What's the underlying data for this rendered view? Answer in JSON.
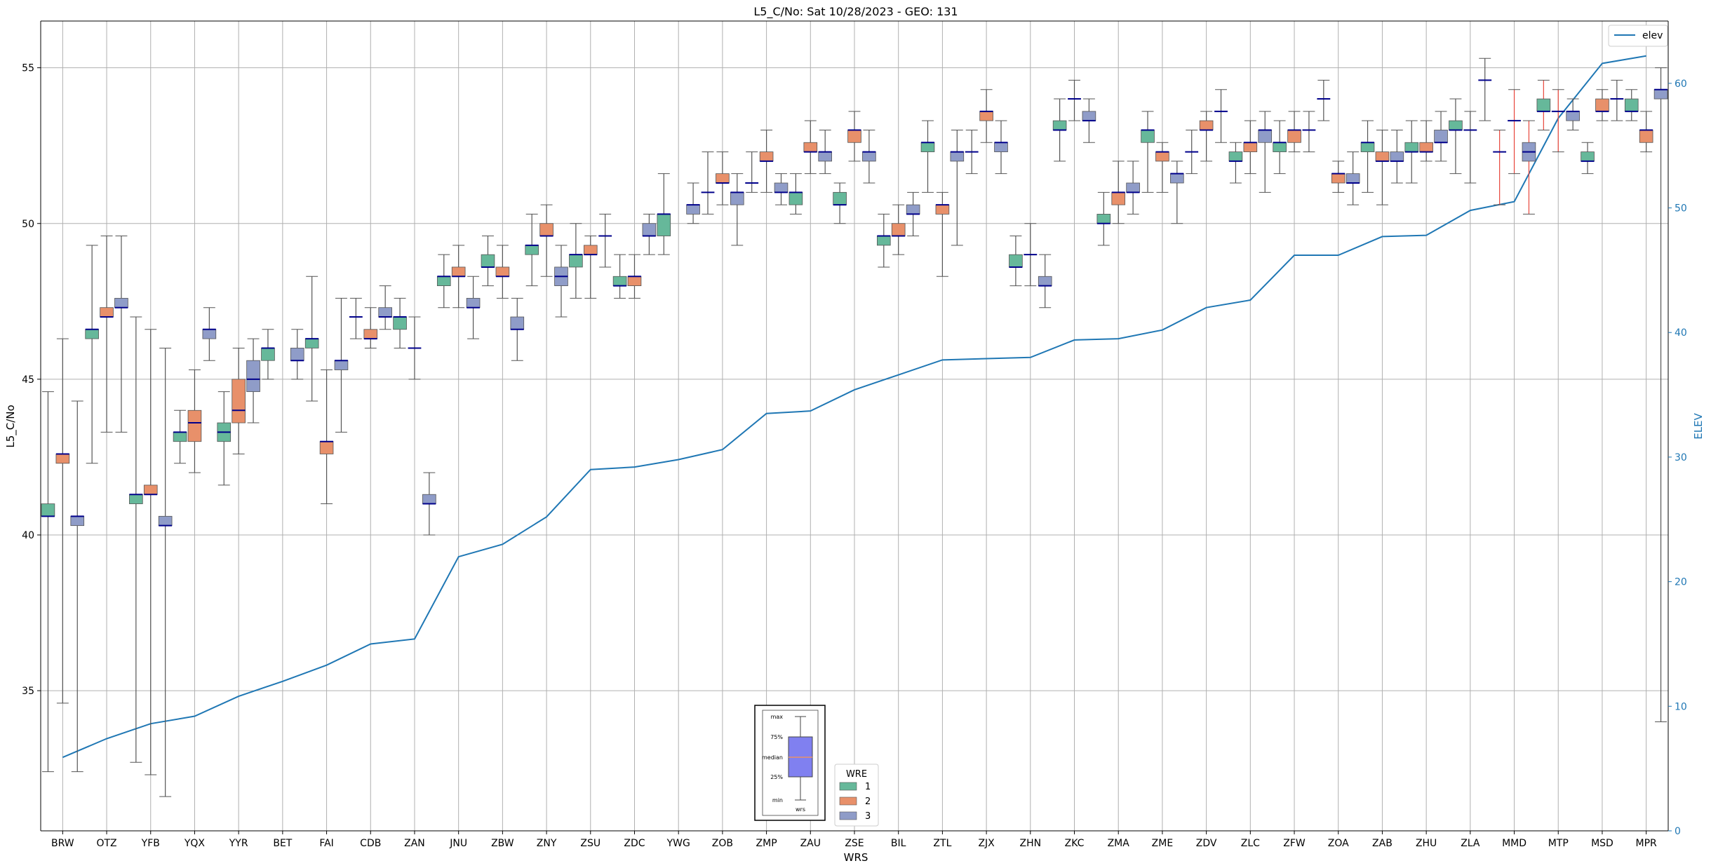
{
  "chart_data": {
    "type": "box",
    "title": "L5_C/No: Sat 10/28/2023 - GEO: 131",
    "xlabel": "WRS",
    "ylabel": "L5_C/No",
    "y2label": "ELEV",
    "ylim": [
      30.5,
      56.5
    ],
    "y2lim": [
      0,
      65
    ],
    "yticks": [
      35,
      40,
      45,
      50,
      55
    ],
    "y2ticks": [
      0,
      10,
      20,
      30,
      40,
      50,
      60
    ],
    "grid": true,
    "colors": {
      "wre1": "#66b89a",
      "wre2": "#e8906a",
      "wre3": "#8f9cc8",
      "median": "#00008b",
      "whisker": "#555555",
      "elev_line": "#1f77b4",
      "elev_axis": "#1f77b4",
      "outlier_whisker": "#e8463c"
    },
    "categories": [
      "BRW",
      "OTZ",
      "YFB",
      "YQX",
      "YYR",
      "BET",
      "FAI",
      "CDB",
      "ZAN",
      "JNU",
      "ZBW",
      "ZNY",
      "ZSU",
      "ZDC",
      "YWG",
      "ZOB",
      "ZMP",
      "ZAU",
      "ZSE",
      "BIL",
      "ZTL",
      "ZJX",
      "ZHN",
      "ZKC",
      "ZMA",
      "ZME",
      "ZDV",
      "ZLC",
      "ZFW",
      "ZOA",
      "ZAB",
      "ZHU",
      "ZLA",
      "MMD",
      "MTP",
      "MSD",
      "MPR"
    ],
    "elev": [
      5.9,
      7.4,
      8.6,
      9.2,
      10.8,
      12.0,
      13.3,
      15.0,
      15.4,
      22.0,
      23.0,
      25.2,
      29.0,
      29.2,
      29.8,
      30.6,
      33.5,
      33.7,
      35.4,
      36.6,
      37.8,
      37.9,
      38.0,
      39.4,
      39.5,
      40.2,
      42.0,
      42.6,
      46.2,
      46.2,
      47.7,
      47.8,
      49.8,
      50.5,
      57.2,
      61.6,
      62.2
    ],
    "legend_main": {
      "title": "elev",
      "entries": [
        "elev"
      ],
      "placement": "upper right"
    },
    "legend_wre": {
      "title": "WRE",
      "entries": [
        "1",
        "2",
        "3"
      ],
      "placement": "lower center"
    },
    "boxplot_key": {
      "labels": [
        "max",
        "75%",
        "median",
        "25%",
        "min"
      ],
      "xlabel": "wrs"
    },
    "boxes": [
      {
        "cat": "BRW",
        "wre": 1,
        "min": 32.4,
        "q1": 40.6,
        "med": 40.6,
        "q3": 41.0,
        "max": 44.6
      },
      {
        "cat": "BRW",
        "wre": 2,
        "min": 34.6,
        "q1": 42.3,
        "med": 42.6,
        "q3": 42.6,
        "max": 46.3
      },
      {
        "cat": "BRW",
        "wre": 3,
        "min": 32.4,
        "q1": 40.3,
        "med": 40.6,
        "q3": 40.6,
        "max": 44.3
      },
      {
        "cat": "OTZ",
        "wre": 1,
        "min": 42.3,
        "q1": 46.3,
        "med": 46.6,
        "q3": 46.6,
        "max": 49.3
      },
      {
        "cat": "OTZ",
        "wre": 2,
        "min": 43.3,
        "q1": 47.0,
        "med": 47.0,
        "q3": 47.3,
        "max": 49.6
      },
      {
        "cat": "OTZ",
        "wre": 3,
        "min": 43.3,
        "q1": 47.3,
        "med": 47.3,
        "q3": 47.6,
        "max": 49.6
      },
      {
        "cat": "YFB",
        "wre": 1,
        "min": 32.7,
        "q1": 41.0,
        "med": 41.3,
        "q3": 41.3,
        "max": 47.0
      },
      {
        "cat": "YFB",
        "wre": 2,
        "min": 32.3,
        "q1": 41.3,
        "med": 41.3,
        "q3": 41.6,
        "max": 46.6
      },
      {
        "cat": "YFB",
        "wre": 3,
        "min": 31.6,
        "q1": 40.3,
        "med": 40.3,
        "q3": 40.6,
        "max": 46.0
      },
      {
        "cat": "YQX",
        "wre": 1,
        "min": 42.3,
        "q1": 43.0,
        "med": 43.3,
        "q3": 43.3,
        "max": 44.0
      },
      {
        "cat": "YQX",
        "wre": 2,
        "min": 42.0,
        "q1": 43.0,
        "med": 43.6,
        "q3": 44.0,
        "max": 45.3
      },
      {
        "cat": "YQX",
        "wre": 3,
        "min": 45.6,
        "q1": 46.3,
        "med": 46.6,
        "q3": 46.6,
        "max": 47.3
      },
      {
        "cat": "YYR",
        "wre": 1,
        "min": 41.6,
        "q1": 43.0,
        "med": 43.3,
        "q3": 43.6,
        "max": 44.6
      },
      {
        "cat": "YYR",
        "wre": 2,
        "min": 42.6,
        "q1": 43.6,
        "med": 44.0,
        "q3": 45.0,
        "max": 46.0
      },
      {
        "cat": "YYR",
        "wre": 3,
        "min": 43.6,
        "q1": 44.6,
        "med": 45.0,
        "q3": 45.6,
        "max": 46.3
      },
      {
        "cat": "BET",
        "wre": 1,
        "min": 45.0,
        "q1": 45.6,
        "med": 46.0,
        "q3": 46.0,
        "max": 46.6
      },
      {
        "cat": "BET",
        "wre": 3,
        "min": 45.0,
        "q1": 45.6,
        "med": 45.6,
        "q3": 46.0,
        "max": 46.6
      },
      {
        "cat": "FAI",
        "wre": 1,
        "min": 44.3,
        "q1": 46.0,
        "med": 46.3,
        "q3": 46.3,
        "max": 48.3
      },
      {
        "cat": "FAI",
        "wre": 2,
        "min": 41.0,
        "q1": 42.6,
        "med": 43.0,
        "q3": 43.0,
        "max": 45.3
      },
      {
        "cat": "FAI",
        "wre": 3,
        "min": 43.3,
        "q1": 45.3,
        "med": 45.6,
        "q3": 45.6,
        "max": 47.6
      },
      {
        "cat": "CDB",
        "wre": 1,
        "min": 46.3,
        "q1": 47.0,
        "med": 47.0,
        "q3": 47.0,
        "max": 47.6
      },
      {
        "cat": "CDB",
        "wre": 2,
        "min": 46.0,
        "q1": 46.3,
        "med": 46.3,
        "q3": 46.6,
        "max": 47.3
      },
      {
        "cat": "CDB",
        "wre": 3,
        "min": 46.6,
        "q1": 47.0,
        "med": 47.0,
        "q3": 47.3,
        "max": 48.0
      },
      {
        "cat": "ZAN",
        "wre": 1,
        "min": 46.0,
        "q1": 46.6,
        "med": 47.0,
        "q3": 47.0,
        "max": 47.6
      },
      {
        "cat": "ZAN",
        "wre": 2,
        "min": 45.0,
        "q1": 46.0,
        "med": 46.0,
        "q3": 46.0,
        "max": 47.0
      },
      {
        "cat": "ZAN",
        "wre": 3,
        "min": 40.0,
        "q1": 41.0,
        "med": 41.0,
        "q3": 41.3,
        "max": 42.0
      },
      {
        "cat": "JNU",
        "wre": 1,
        "min": 47.3,
        "q1": 48.0,
        "med": 48.3,
        "q3": 48.3,
        "max": 49.0
      },
      {
        "cat": "JNU",
        "wre": 2,
        "min": 47.3,
        "q1": 48.3,
        "med": 48.3,
        "q3": 48.6,
        "max": 49.3
      },
      {
        "cat": "JNU",
        "wre": 3,
        "min": 46.3,
        "q1": 47.3,
        "med": 47.3,
        "q3": 47.6,
        "max": 48.3
      },
      {
        "cat": "ZBW",
        "wre": 1,
        "min": 48.0,
        "q1": 48.6,
        "med": 48.6,
        "q3": 49.0,
        "max": 49.6
      },
      {
        "cat": "ZBW",
        "wre": 2,
        "min": 47.6,
        "q1": 48.3,
        "med": 48.3,
        "q3": 48.6,
        "max": 49.3
      },
      {
        "cat": "ZBW",
        "wre": 3,
        "min": 45.6,
        "q1": 46.6,
        "med": 46.6,
        "q3": 47.0,
        "max": 47.6
      },
      {
        "cat": "ZNY",
        "wre": 1,
        "min": 48.0,
        "q1": 49.0,
        "med": 49.3,
        "q3": 49.3,
        "max": 50.3
      },
      {
        "cat": "ZNY",
        "wre": 2,
        "min": 48.3,
        "q1": 49.6,
        "med": 49.6,
        "q3": 50.0,
        "max": 50.6
      },
      {
        "cat": "ZNY",
        "wre": 3,
        "min": 47.0,
        "q1": 48.0,
        "med": 48.3,
        "q3": 48.6,
        "max": 49.3
      },
      {
        "cat": "ZSU",
        "wre": 1,
        "min": 47.6,
        "q1": 48.6,
        "med": 49.0,
        "q3": 49.0,
        "max": 50.0
      },
      {
        "cat": "ZSU",
        "wre": 2,
        "min": 47.6,
        "q1": 49.0,
        "med": 49.0,
        "q3": 49.3,
        "max": 49.6
      },
      {
        "cat": "ZSU",
        "wre": 3,
        "min": 48.6,
        "q1": 49.6,
        "med": 49.6,
        "q3": 49.6,
        "max": 50.3
      },
      {
        "cat": "ZDC",
        "wre": 1,
        "min": 47.6,
        "q1": 48.0,
        "med": 48.0,
        "q3": 48.3,
        "max": 49.0
      },
      {
        "cat": "ZDC",
        "wre": 2,
        "min": 47.6,
        "q1": 48.0,
        "med": 48.3,
        "q3": 48.3,
        "max": 49.0
      },
      {
        "cat": "ZDC",
        "wre": 3,
        "min": 49.0,
        "q1": 49.6,
        "med": 49.6,
        "q3": 50.0,
        "max": 50.3
      },
      {
        "cat": "YWG",
        "wre": 1,
        "min": 49.0,
        "q1": 49.6,
        "med": 50.3,
        "q3": 50.3,
        "max": 51.6
      },
      {
        "cat": "YWG",
        "wre": 3,
        "min": 50.0,
        "q1": 50.3,
        "med": 50.6,
        "q3": 50.6,
        "max": 51.3
      },
      {
        "cat": "ZOB",
        "wre": 1,
        "min": 50.3,
        "q1": 51.0,
        "med": 51.0,
        "q3": 51.0,
        "max": 52.3
      },
      {
        "cat": "ZOB",
        "wre": 2,
        "min": 50.6,
        "q1": 51.3,
        "med": 51.3,
        "q3": 51.6,
        "max": 52.3
      },
      {
        "cat": "ZOB",
        "wre": 3,
        "min": 49.3,
        "q1": 50.6,
        "med": 51.0,
        "q3": 51.0,
        "max": 51.6
      },
      {
        "cat": "ZMP",
        "wre": 1,
        "min": 51.0,
        "q1": 51.3,
        "med": 51.3,
        "q3": 51.3,
        "max": 52.3
      },
      {
        "cat": "ZMP",
        "wre": 2,
        "min": 51.0,
        "q1": 52.0,
        "med": 52.0,
        "q3": 52.3,
        "max": 53.0
      },
      {
        "cat": "ZMP",
        "wre": 3,
        "min": 50.6,
        "q1": 51.0,
        "med": 51.0,
        "q3": 51.3,
        "max": 51.6
      },
      {
        "cat": "ZAU",
        "wre": 1,
        "min": 50.3,
        "q1": 50.6,
        "med": 51.0,
        "q3": 51.0,
        "max": 51.6
      },
      {
        "cat": "ZAU",
        "wre": 2,
        "min": 51.6,
        "q1": 52.3,
        "med": 52.3,
        "q3": 52.6,
        "max": 53.3
      },
      {
        "cat": "ZAU",
        "wre": 3,
        "min": 51.6,
        "q1": 52.0,
        "med": 52.3,
        "q3": 52.3,
        "max": 53.0
      },
      {
        "cat": "ZSE",
        "wre": 1,
        "min": 50.0,
        "q1": 50.6,
        "med": 50.6,
        "q3": 51.0,
        "max": 51.3
      },
      {
        "cat": "ZSE",
        "wre": 2,
        "min": 52.0,
        "q1": 52.6,
        "med": 53.0,
        "q3": 53.0,
        "max": 53.6
      },
      {
        "cat": "ZSE",
        "wre": 3,
        "min": 51.3,
        "q1": 52.0,
        "med": 52.3,
        "q3": 52.3,
        "max": 53.0
      },
      {
        "cat": "BIL",
        "wre": 1,
        "min": 48.6,
        "q1": 49.3,
        "med": 49.6,
        "q3": 49.6,
        "max": 50.3
      },
      {
        "cat": "BIL",
        "wre": 2,
        "min": 49.0,
        "q1": 49.6,
        "med": 49.6,
        "q3": 50.0,
        "max": 50.6
      },
      {
        "cat": "BIL",
        "wre": 3,
        "min": 49.6,
        "q1": 50.3,
        "med": 50.3,
        "q3": 50.6,
        "max": 51.0
      },
      {
        "cat": "ZTL",
        "wre": 1,
        "min": 51.0,
        "q1": 52.3,
        "med": 52.6,
        "q3": 52.6,
        "max": 53.3
      },
      {
        "cat": "ZTL",
        "wre": 2,
        "min": 48.3,
        "q1": 50.3,
        "med": 50.6,
        "q3": 50.6,
        "max": 51.0
      },
      {
        "cat": "ZTL",
        "wre": 3,
        "min": 49.3,
        "q1": 52.0,
        "med": 52.3,
        "q3": 52.3,
        "max": 53.0
      },
      {
        "cat": "ZJX",
        "wre": 1,
        "min": 51.6,
        "q1": 52.3,
        "med": 52.3,
        "q3": 52.3,
        "max": 53.0
      },
      {
        "cat": "ZJX",
        "wre": 2,
        "min": 52.6,
        "q1": 53.3,
        "med": 53.6,
        "q3": 53.6,
        "max": 54.3
      },
      {
        "cat": "ZJX",
        "wre": 3,
        "min": 51.6,
        "q1": 52.3,
        "med": 52.6,
        "q3": 52.6,
        "max": 53.3
      },
      {
        "cat": "ZHN",
        "wre": 1,
        "min": 48.0,
        "q1": 48.6,
        "med": 48.6,
        "q3": 49.0,
        "max": 49.6
      },
      {
        "cat": "ZHN",
        "wre": 2,
        "min": 48.0,
        "q1": 49.0,
        "med": 49.0,
        "q3": 49.0,
        "max": 50.0
      },
      {
        "cat": "ZHN",
        "wre": 3,
        "min": 47.3,
        "q1": 48.0,
        "med": 48.0,
        "q3": 48.3,
        "max": 49.0
      },
      {
        "cat": "ZKC",
        "wre": 1,
        "min": 52.0,
        "q1": 53.0,
        "med": 53.0,
        "q3": 53.3,
        "max": 54.0
      },
      {
        "cat": "ZKC",
        "wre": 2,
        "min": 53.3,
        "q1": 54.0,
        "med": 54.0,
        "q3": 54.0,
        "max": 54.6
      },
      {
        "cat": "ZKC",
        "wre": 3,
        "min": 52.6,
        "q1": 53.3,
        "med": 53.3,
        "q3": 53.6,
        "max": 54.0
      },
      {
        "cat": "ZMA",
        "wre": 1,
        "min": 49.3,
        "q1": 50.0,
        "med": 50.0,
        "q3": 50.3,
        "max": 51.0
      },
      {
        "cat": "ZMA",
        "wre": 2,
        "min": 50.0,
        "q1": 50.6,
        "med": 51.0,
        "q3": 51.0,
        "max": 52.0
      },
      {
        "cat": "ZMA",
        "wre": 3,
        "min": 50.3,
        "q1": 51.0,
        "med": 51.0,
        "q3": 51.3,
        "max": 52.0
      },
      {
        "cat": "ZME",
        "wre": 1,
        "min": 51.0,
        "q1": 52.6,
        "med": 53.0,
        "q3": 53.0,
        "max": 53.6
      },
      {
        "cat": "ZME",
        "wre": 2,
        "min": 51.0,
        "q1": 52.0,
        "med": 52.3,
        "q3": 52.3,
        "max": 52.6
      },
      {
        "cat": "ZME",
        "wre": 3,
        "min": 50.0,
        "q1": 51.3,
        "med": 51.6,
        "q3": 51.6,
        "max": 52.0
      },
      {
        "cat": "ZDV",
        "wre": 1,
        "min": 51.6,
        "q1": 52.3,
        "med": 52.3,
        "q3": 52.3,
        "max": 53.0
      },
      {
        "cat": "ZDV",
        "wre": 2,
        "min": 52.0,
        "q1": 53.0,
        "med": 53.0,
        "q3": 53.3,
        "max": 53.6
      },
      {
        "cat": "ZDV",
        "wre": 3,
        "min": 52.6,
        "q1": 53.6,
        "med": 53.6,
        "q3": 53.6,
        "max": 54.3
      },
      {
        "cat": "ZLC",
        "wre": 1,
        "min": 51.3,
        "q1": 52.0,
        "med": 52.0,
        "q3": 52.3,
        "max": 52.6
      },
      {
        "cat": "ZLC",
        "wre": 2,
        "min": 51.6,
        "q1": 52.3,
        "med": 52.6,
        "q3": 52.6,
        "max": 53.3
      },
      {
        "cat": "ZLC",
        "wre": 3,
        "min": 51.0,
        "q1": 52.6,
        "med": 53.0,
        "q3": 53.0,
        "max": 53.6
      },
      {
        "cat": "ZFW",
        "wre": 1,
        "min": 51.6,
        "q1": 52.3,
        "med": 52.6,
        "q3": 52.6,
        "max": 53.3
      },
      {
        "cat": "ZFW",
        "wre": 2,
        "min": 52.3,
        "q1": 52.6,
        "med": 53.0,
        "q3": 53.0,
        "max": 53.6
      },
      {
        "cat": "ZFW",
        "wre": 3,
        "min": 52.3,
        "q1": 53.0,
        "med": 53.0,
        "q3": 53.0,
        "max": 53.6
      },
      {
        "cat": "ZOA",
        "wre": 1,
        "min": 53.3,
        "q1": 54.0,
        "med": 54.0,
        "q3": 54.0,
        "max": 54.6
      },
      {
        "cat": "ZOA",
        "wre": 2,
        "min": 51.0,
        "q1": 51.3,
        "med": 51.6,
        "q3": 51.6,
        "max": 52.0
      },
      {
        "cat": "ZOA",
        "wre": 3,
        "min": 50.6,
        "q1": 51.3,
        "med": 51.3,
        "q3": 51.6,
        "max": 52.3
      },
      {
        "cat": "ZAB",
        "wre": 1,
        "min": 51.0,
        "q1": 52.3,
        "med": 52.6,
        "q3": 52.6,
        "max": 53.3
      },
      {
        "cat": "ZAB",
        "wre": 2,
        "min": 50.6,
        "q1": 52.0,
        "med": 52.0,
        "q3": 52.3,
        "max": 53.0
      },
      {
        "cat": "ZAB",
        "wre": 3,
        "min": 51.3,
        "q1": 52.0,
        "med": 52.0,
        "q3": 52.3,
        "max": 53.0
      },
      {
        "cat": "ZHU",
        "wre": 1,
        "min": 51.3,
        "q1": 52.3,
        "med": 52.3,
        "q3": 52.6,
        "max": 53.3
      },
      {
        "cat": "ZHU",
        "wre": 2,
        "min": 52.0,
        "q1": 52.3,
        "med": 52.3,
        "q3": 52.6,
        "max": 53.3
      },
      {
        "cat": "ZHU",
        "wre": 3,
        "min": 52.0,
        "q1": 52.6,
        "med": 52.6,
        "q3": 53.0,
        "max": 53.6
      },
      {
        "cat": "ZLA",
        "wre": 1,
        "min": 51.6,
        "q1": 53.0,
        "med": 53.0,
        "q3": 53.3,
        "max": 54.0
      },
      {
        "cat": "ZLA",
        "wre": 2,
        "min": 51.3,
        "q1": 53.0,
        "med": 53.0,
        "q3": 53.0,
        "max": 53.6
      },
      {
        "cat": "ZLA",
        "wre": 3,
        "min": 53.3,
        "q1": 54.6,
        "med": 54.6,
        "q3": 54.6,
        "max": 55.3
      },
      {
        "cat": "MMD",
        "wre": 1,
        "min": 50.6,
        "q1": 52.3,
        "med": 52.3,
        "q3": 52.3,
        "max": 53.0,
        "red": true
      },
      {
        "cat": "MMD",
        "wre": 2,
        "min": 51.6,
        "q1": 53.3,
        "med": 53.3,
        "q3": 53.3,
        "max": 54.3,
        "red": true
      },
      {
        "cat": "MMD",
        "wre": 3,
        "min": 50.3,
        "q1": 52.0,
        "med": 52.3,
        "q3": 52.6,
        "max": 53.3,
        "red": true
      },
      {
        "cat": "MTP",
        "wre": 1,
        "min": 53.0,
        "q1": 53.6,
        "med": 53.6,
        "q3": 54.0,
        "max": 54.6,
        "red": true
      },
      {
        "cat": "MTP",
        "wre": 2,
        "min": 52.3,
        "q1": 53.6,
        "med": 53.6,
        "q3": 53.6,
        "max": 54.3,
        "red": true
      },
      {
        "cat": "MTP",
        "wre": 3,
        "min": 53.0,
        "q1": 53.3,
        "med": 53.6,
        "q3": 53.6,
        "max": 54.0
      },
      {
        "cat": "MSD",
        "wre": 1,
        "min": 51.6,
        "q1": 52.0,
        "med": 52.0,
        "q3": 52.3,
        "max": 52.6
      },
      {
        "cat": "MSD",
        "wre": 2,
        "min": 53.3,
        "q1": 53.6,
        "med": 53.6,
        "q3": 54.0,
        "max": 54.3
      },
      {
        "cat": "MSD",
        "wre": 3,
        "min": 53.3,
        "q1": 54.0,
        "med": 54.0,
        "q3": 54.0,
        "max": 54.6
      },
      {
        "cat": "MPR",
        "wre": 1,
        "min": 53.3,
        "q1": 53.6,
        "med": 53.6,
        "q3": 54.0,
        "max": 54.3
      },
      {
        "cat": "MPR",
        "wre": 2,
        "min": 52.3,
        "q1": 52.6,
        "med": 53.0,
        "q3": 53.0,
        "max": 53.6
      },
      {
        "cat": "MPR",
        "wre": 3,
        "min": 34.0,
        "q1": 54.0,
        "med": 54.3,
        "q3": 54.3,
        "max": 55.0
      }
    ]
  }
}
